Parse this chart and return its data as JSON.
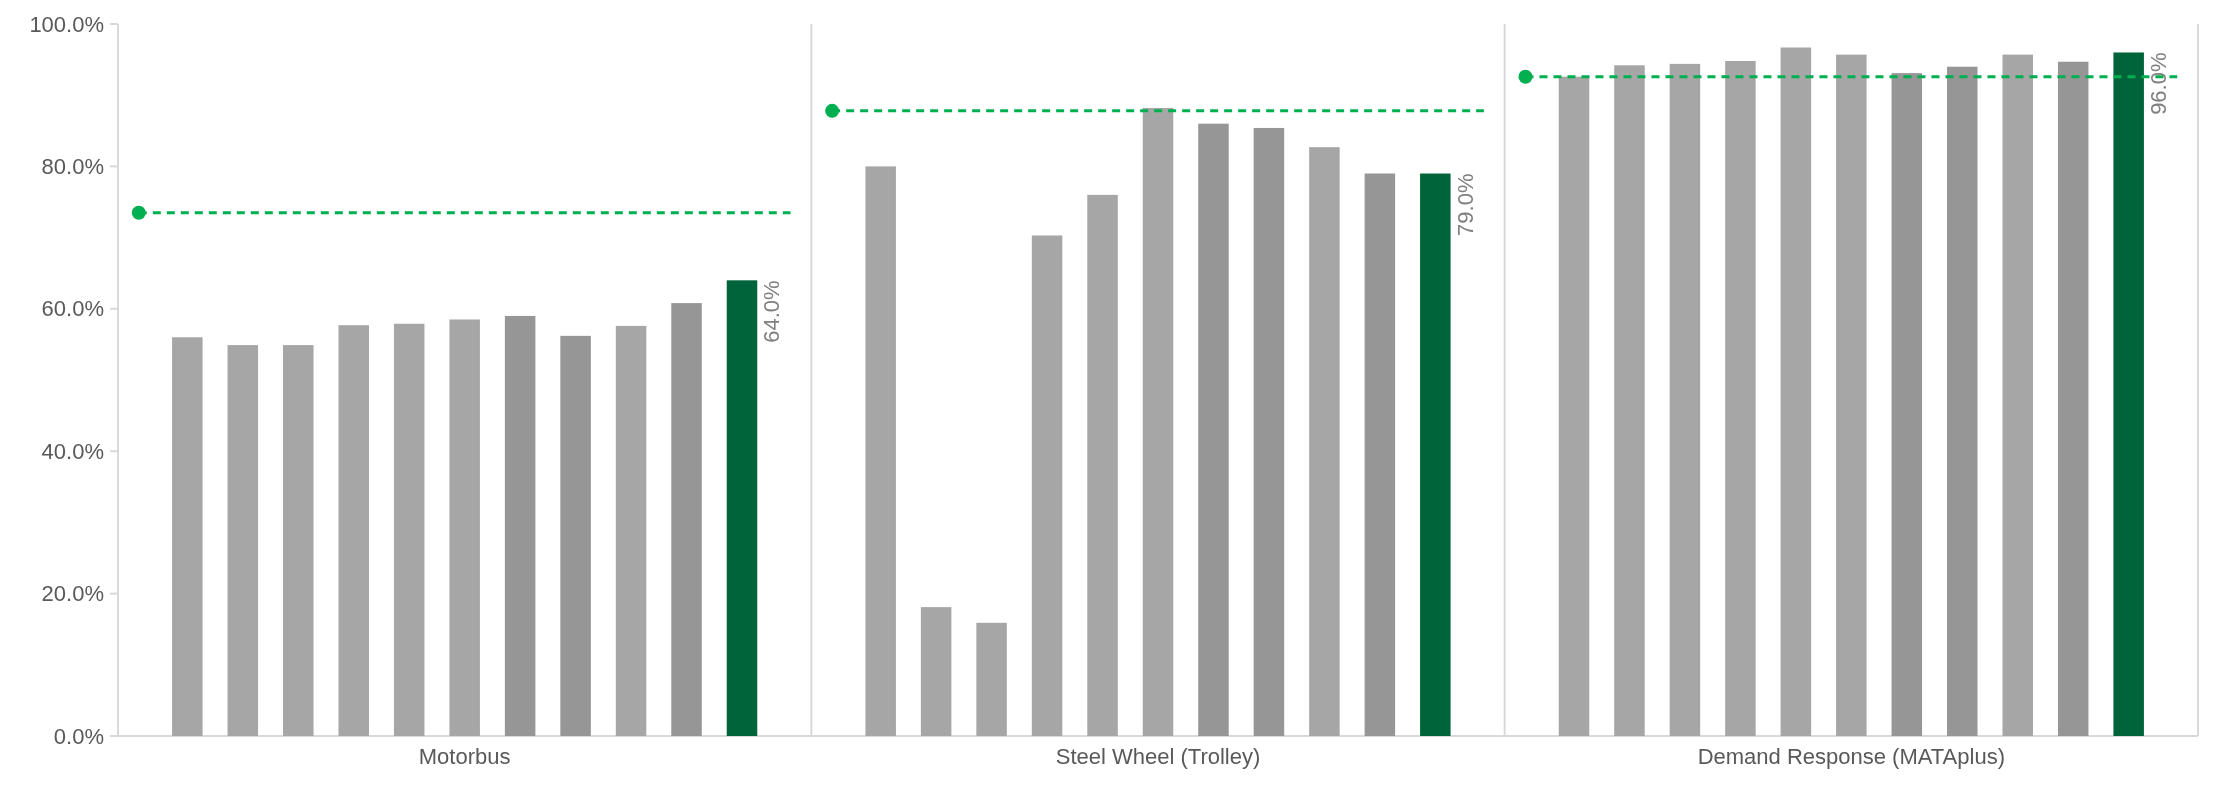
{
  "chart_data": {
    "type": "bar",
    "categories": [
      "Motorbus",
      "Steel Wheel (Trolley)",
      "Demand Response (MATAplus)"
    ],
    "ylim": [
      0,
      100
    ],
    "yticks": [
      {
        "value": 0,
        "label": "0.0%"
      },
      {
        "value": 20,
        "label": "20.0%"
      },
      {
        "value": 40,
        "label": "40.0%"
      },
      {
        "value": 60,
        "label": "60.0%"
      },
      {
        "value": 80,
        "label": "80.0%"
      },
      {
        "value": 100,
        "label": "100.0%"
      }
    ],
    "grid": "x",
    "series": [
      {
        "color": "#a6a6a6",
        "values": [
          56.0,
          80.0,
          92.6
        ]
      },
      {
        "color": "#a6a6a6",
        "values": [
          54.9,
          18.1,
          94.2
        ]
      },
      {
        "color": "#a6a6a6",
        "values": [
          54.9,
          15.9,
          94.4
        ]
      },
      {
        "color": "#a6a6a6",
        "values": [
          57.7,
          70.3,
          94.8
        ]
      },
      {
        "color": "#a6a6a6",
        "values": [
          57.9,
          76.0,
          96.7
        ]
      },
      {
        "color": "#a6a6a6",
        "values": [
          58.5,
          88.2,
          95.7
        ]
      },
      {
        "color": "#969696",
        "values": [
          59.0,
          86.0,
          93.1
        ]
      },
      {
        "color": "#969696",
        "values": [
          56.2,
          85.4,
          94.0
        ]
      },
      {
        "color": "#a6a6a6",
        "values": [
          57.6,
          82.7,
          95.7
        ]
      },
      {
        "color": "#969696",
        "values": [
          60.8,
          79.0,
          94.7
        ]
      },
      {
        "color": "#00643a",
        "values": [
          64.0,
          79.0,
          96.0
        ],
        "value_labels": [
          "64.0%",
          "79.0%",
          "96.0%"
        ]
      }
    ],
    "ref_lines": [
      {
        "axis": "y",
        "value": 73.5,
        "color": "#00b050",
        "line_style": "dashed"
      },
      {
        "axis": "y",
        "value": 87.8,
        "color": "#00b050",
        "line_style": "dashed"
      },
      {
        "axis": "y",
        "value": 92.6,
        "color": "#00b050",
        "line_style": "dashed"
      }
    ]
  }
}
